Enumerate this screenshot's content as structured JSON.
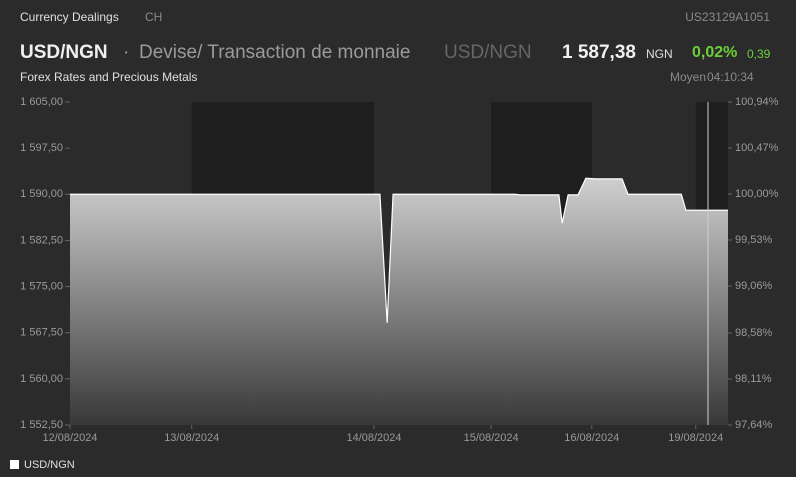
{
  "header": {
    "tab": "Currency Dealings",
    "tab2": "CH",
    "isin": "US23129A1051",
    "symbol": "USD/NGN",
    "separator": "·",
    "description": "Devise/ Transaction de monnaie",
    "symbol2": "USD/NGN",
    "price": "1 587,38",
    "currency": "NGN",
    "change_pct": "0,02%",
    "change": "0,39",
    "category": "Forex Rates and Precious Metals",
    "price_type": "Moyen",
    "time": "04:10:34"
  },
  "chart_data": {
    "type": "area",
    "x": [
      0,
      47.1,
      48.2,
      49.1,
      67.6,
      68.4,
      74.3,
      74.8,
      75.7,
      77.2,
      78.4,
      80.0,
      83.9,
      84.8,
      92.9,
      93.6,
      95.1,
      100
    ],
    "series": [
      {
        "name": "USD/NGN",
        "color": "#ffffff",
        "values": [
          1590,
          1590,
          1569.1,
          1590,
          1590,
          1589.9,
          1589.9,
          1585.3,
          1589.9,
          1589.9,
          1592.6,
          1592.5,
          1592.5,
          1590,
          1590,
          1587.4,
          1587.4,
          1587.4
        ]
      }
    ],
    "xlim": [
      0,
      100
    ],
    "xticks": [
      {
        "value": 0,
        "label": "12/08/2024"
      },
      {
        "value": 18.5,
        "label": "13/08/2024"
      },
      {
        "value": 46.2,
        "label": "14/08/2024"
      },
      {
        "value": 64.0,
        "label": "15/08/2024"
      },
      {
        "value": 79.3,
        "label": "16/08/2024"
      },
      {
        "value": 95.1,
        "label": "19/08/2024"
      }
    ],
    "ylim": [
      1552.5,
      1605
    ],
    "yticks": [
      {
        "value": 1605,
        "label": "1 605,00"
      },
      {
        "value": 1597.5,
        "label": "1 597,50"
      },
      {
        "value": 1590,
        "label": "1 590,00"
      },
      {
        "value": 1582.5,
        "label": "1 582,50"
      },
      {
        "value": 1575,
        "label": "1 575,00"
      },
      {
        "value": 1567.5,
        "label": "1 567,50"
      },
      {
        "value": 1560,
        "label": "1 560,00"
      },
      {
        "value": 1552.5,
        "label": "1 552,50"
      }
    ],
    "y2lim": [
      97.64,
      100.94
    ],
    "y2ticks": [
      {
        "value": 100.94,
        "label": "100,94%"
      },
      {
        "value": 100.47,
        "label": "100,47%"
      },
      {
        "value": 100.0,
        "label": "100,00%"
      },
      {
        "value": 99.53,
        "label": "99,53%"
      },
      {
        "value": 99.06,
        "label": "99,06%"
      },
      {
        "value": 98.58,
        "label": "98,58%"
      },
      {
        "value": 98.11,
        "label": "98,11%"
      },
      {
        "value": 97.64,
        "label": "97,64%"
      }
    ],
    "grid": false,
    "legend": "bottom-left"
  }
}
